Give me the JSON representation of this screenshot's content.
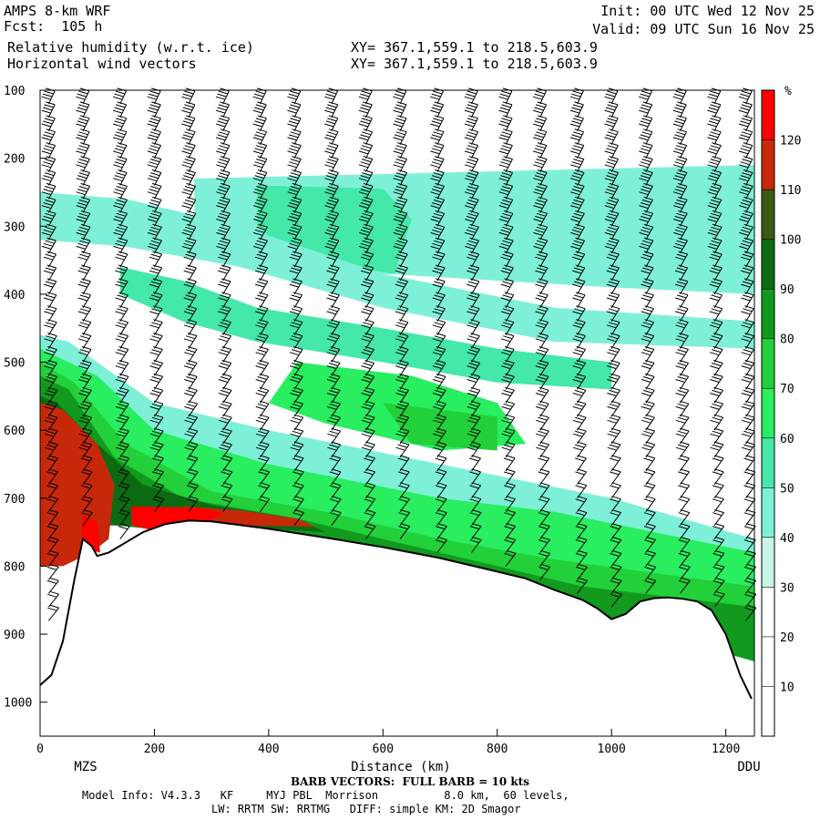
{
  "header": {
    "model": "AMPS 8-km WRF",
    "forecast": "Fcst:  105 h",
    "init": "Init: 00 UTC Wed 12 Nov 25",
    "valid": "Valid: 09 UTC Sun 16 Nov 25",
    "field1": "Relative humidity (w.r.t. ice)",
    "field2": "Horizontal wind vectors",
    "xy1": "XY= 367.1,559.1 to 218.5,603.9",
    "xy2": "XY= 367.1,559.1 to 218.5,603.9"
  },
  "footer": {
    "barb_note": "BARB VECTORS:  FULL BARB = 10 kts",
    "model_info": "Model Info: V4.3.3   KF     MYJ PBL  Morrison          8.0 km,  60 levels,",
    "physics": "LW: RRTM SW: RRTMG   DIFF: simple KM: 2D Smagor"
  },
  "chart_data": {
    "type": "heatmap",
    "xlabel": "Distance (km)",
    "x_start_label": "MZS",
    "x_end_label": "DDU",
    "xlim": [
      0,
      1250
    ],
    "ylim": [
      1050,
      100
    ],
    "x_ticks": [
      0,
      200,
      400,
      600,
      800,
      1000,
      1200
    ],
    "y_ticks": [
      100,
      200,
      300,
      400,
      500,
      600,
      700,
      800,
      900,
      1000
    ],
    "colorbar": {
      "unit": "%",
      "levels": [
        10,
        20,
        30,
        40,
        50,
        60,
        70,
        80,
        90,
        100,
        110,
        120
      ],
      "colors": [
        "#ffffff",
        "#ffffff",
        "#ffffff",
        "#c8f5e8",
        "#7ff0d8",
        "#44e8a8",
        "#28ee60",
        "#22d03a",
        "#119a1e",
        "#0c6b12",
        "#3b5a12",
        "#c8280a",
        "#ff0000"
      ]
    },
    "terrain": [
      [
        0,
        975
      ],
      [
        20,
        960
      ],
      [
        40,
        910
      ],
      [
        60,
        820
      ],
      [
        75,
        760
      ],
      [
        90,
        770
      ],
      [
        100,
        785
      ],
      [
        120,
        780
      ],
      [
        150,
        765
      ],
      [
        180,
        750
      ],
      [
        220,
        738
      ],
      [
        260,
        733
      ],
      [
        300,
        734
      ],
      [
        400,
        745
      ],
      [
        500,
        758
      ],
      [
        600,
        772
      ],
      [
        700,
        788
      ],
      [
        800,
        808
      ],
      [
        850,
        818
      ],
      [
        900,
        835
      ],
      [
        950,
        850
      ],
      [
        975,
        862
      ],
      [
        1000,
        878
      ],
      [
        1025,
        870
      ],
      [
        1050,
        852
      ],
      [
        1075,
        847
      ],
      [
        1100,
        846
      ],
      [
        1125,
        848
      ],
      [
        1150,
        852
      ],
      [
        1175,
        865
      ],
      [
        1200,
        900
      ],
      [
        1225,
        960
      ],
      [
        1245,
        995
      ]
    ],
    "rh_regions": [
      {
        "level": 40,
        "pts": [
          [
            270,
            230
          ],
          [
            1250,
            210
          ],
          [
            1250,
            400
          ],
          [
            1000,
            390
          ],
          [
            800,
            380
          ],
          [
            600,
            370
          ],
          [
            400,
            330
          ],
          [
            270,
            300
          ]
        ]
      },
      {
        "level": 50,
        "pts": [
          [
            380,
            240
          ],
          [
            600,
            245
          ],
          [
            650,
            290
          ],
          [
            620,
            370
          ],
          [
            450,
            350
          ],
          [
            380,
            300
          ]
        ]
      },
      {
        "level": 40,
        "pts": [
          [
            0,
            250
          ],
          [
            150,
            260
          ],
          [
            350,
            300
          ],
          [
            600,
            370
          ],
          [
            900,
            420
          ],
          [
            1250,
            440
          ],
          [
            1250,
            480
          ],
          [
            900,
            470
          ],
          [
            600,
            420
          ],
          [
            350,
            360
          ],
          [
            150,
            330
          ],
          [
            0,
            320
          ]
        ]
      },
      {
        "level": 50,
        "pts": [
          [
            140,
            360
          ],
          [
            250,
            380
          ],
          [
            380,
            420
          ],
          [
            600,
            450
          ],
          [
            800,
            480
          ],
          [
            1000,
            500
          ],
          [
            1000,
            540
          ],
          [
            800,
            530
          ],
          [
            600,
            500
          ],
          [
            380,
            470
          ],
          [
            250,
            440
          ],
          [
            140,
            400
          ]
        ]
      },
      {
        "level": 40,
        "pts": [
          [
            0,
            460
          ],
          [
            50,
            470
          ],
          [
            200,
            560
          ],
          [
            400,
            600
          ],
          [
            700,
            650
          ],
          [
            1000,
            700
          ],
          [
            1250,
            760
          ],
          [
            1250,
            800
          ],
          [
            1000,
            760
          ],
          [
            700,
            710
          ],
          [
            400,
            660
          ],
          [
            200,
            610
          ],
          [
            50,
            560
          ],
          [
            0,
            540
          ]
        ]
      },
      {
        "level": 60,
        "pts": [
          [
            450,
            500
          ],
          [
            650,
            520
          ],
          [
            800,
            560
          ],
          [
            850,
            620
          ],
          [
            700,
            630
          ],
          [
            500,
            590
          ],
          [
            400,
            560
          ]
        ]
      },
      {
        "level": 70,
        "pts": [
          [
            600,
            560
          ],
          [
            800,
            580
          ],
          [
            800,
            630
          ],
          [
            650,
            620
          ]
        ]
      },
      {
        "level": 60,
        "pts": [
          [
            0,
            480
          ],
          [
            100,
            520
          ],
          [
            200,
            600
          ],
          [
            400,
            650
          ],
          [
            700,
            700
          ],
          [
            900,
            720
          ],
          [
            1250,
            780
          ],
          [
            1250,
            860
          ],
          [
            900,
            800
          ],
          [
            700,
            760
          ],
          [
            400,
            720
          ],
          [
            200,
            700
          ],
          [
            100,
            680
          ],
          [
            0,
            650
          ]
        ]
      },
      {
        "level": 70,
        "pts": [
          [
            0,
            500
          ],
          [
            60,
            530
          ],
          [
            150,
            620
          ],
          [
            300,
            690
          ],
          [
            500,
            720
          ],
          [
            700,
            760
          ],
          [
            900,
            790
          ],
          [
            1250,
            830
          ],
          [
            1250,
            900
          ],
          [
            900,
            840
          ],
          [
            700,
            790
          ],
          [
            500,
            760
          ],
          [
            300,
            740
          ],
          [
            150,
            720
          ],
          [
            0,
            700
          ]
        ]
      },
      {
        "level": 80,
        "pts": [
          [
            0,
            520
          ],
          [
            50,
            540
          ],
          [
            130,
            640
          ],
          [
            250,
            700
          ],
          [
            450,
            730
          ],
          [
            600,
            760
          ],
          [
            800,
            800
          ],
          [
            950,
            830
          ],
          [
            1250,
            860
          ],
          [
            1250,
            940
          ],
          [
            950,
            870
          ],
          [
            800,
            830
          ],
          [
            600,
            790
          ],
          [
            450,
            760
          ],
          [
            250,
            750
          ],
          [
            130,
            740
          ],
          [
            0,
            730
          ]
        ]
      },
      {
        "level": 90,
        "pts": [
          [
            0,
            550
          ],
          [
            30,
            560
          ],
          [
            100,
            620
          ],
          [
            180,
            680
          ],
          [
            300,
            710
          ],
          [
            450,
            730
          ],
          [
            500,
            750
          ],
          [
            300,
            740
          ],
          [
            180,
            740
          ],
          [
            100,
            740
          ],
          [
            0,
            760
          ]
        ]
      },
      {
        "level": 110,
        "pts": [
          [
            0,
            560
          ],
          [
            40,
            570
          ],
          [
            100,
            620
          ],
          [
            130,
            680
          ],
          [
            120,
            760
          ],
          [
            90,
            780
          ],
          [
            40,
            800
          ],
          [
            0,
            800
          ]
        ]
      },
      {
        "level": 110,
        "pts": [
          [
            250,
            712
          ],
          [
            350,
            718
          ],
          [
            450,
            730
          ],
          [
            480,
            742
          ],
          [
            350,
            740
          ],
          [
            250,
            738
          ]
        ]
      },
      {
        "level": 120,
        "pts": [
          [
            160,
            712
          ],
          [
            280,
            714
          ],
          [
            320,
            722
          ],
          [
            290,
            736
          ],
          [
            200,
            748
          ],
          [
            160,
            740
          ]
        ]
      },
      {
        "level": 120,
        "pts": [
          [
            75,
            725
          ],
          [
            100,
            735
          ],
          [
            105,
            780
          ],
          [
            80,
            775
          ],
          [
            72,
            750
          ]
        ]
      }
    ],
    "barb_columns_km": [
      15,
      75,
      140,
      200,
      260,
      320,
      385,
      445,
      510,
      570,
      630,
      695,
      755,
      815,
      875,
      940,
      1000,
      1060,
      1120,
      1180,
      1235
    ],
    "barb_levels_hpa": [
      120,
      140,
      160,
      180,
      200,
      220,
      240,
      260,
      280,
      300,
      320,
      340,
      360,
      380,
      400,
      420,
      440,
      460,
      480,
      500,
      520,
      540,
      560,
      580,
      600,
      620,
      640,
      660,
      680,
      700,
      720,
      740,
      760,
      780,
      800,
      820,
      840,
      860,
      880
    ]
  }
}
